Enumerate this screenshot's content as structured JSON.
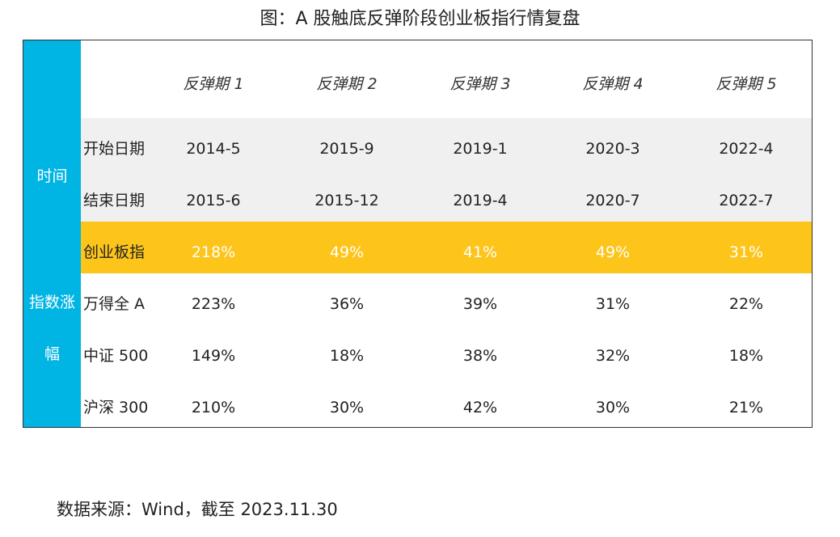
{
  "title": "图：A 股触底反弹阶段创业板指行情复盘",
  "side_labels": {
    "time": "时间",
    "index_change": "指数涨幅"
  },
  "colors": {
    "side_column": "#00b4e4",
    "highlight_row": "#fdc41a",
    "date_band": "#f0f0f0"
  },
  "table": {
    "columns": [
      "反弹期 1",
      "反弹期 2",
      "反弹期 3",
      "反弹期 4",
      "反弹期 5"
    ],
    "rows": [
      {
        "label": "开始日期",
        "values": [
          "2014-5",
          "2015-9",
          "2019-1",
          "2020-3",
          "2022-4"
        ]
      },
      {
        "label": "结束日期",
        "values": [
          "2015-6",
          "2015-12",
          "2019-4",
          "2020-7",
          "2022-7"
        ]
      },
      {
        "label": "创业板指",
        "values": [
          "218%",
          "49%",
          "41%",
          "49%",
          "31%"
        ]
      },
      {
        "label": "万得全 A",
        "values": [
          "223%",
          "36%",
          "39%",
          "31%",
          "22%"
        ]
      },
      {
        "label": "中证 500",
        "values": [
          "149%",
          "18%",
          "38%",
          "32%",
          "18%"
        ]
      },
      {
        "label": "沪深 300",
        "values": [
          "210%",
          "30%",
          "42%",
          "30%",
          "21%"
        ]
      }
    ]
  },
  "source": "数据来源：Wind，截至 2023.11.30"
}
